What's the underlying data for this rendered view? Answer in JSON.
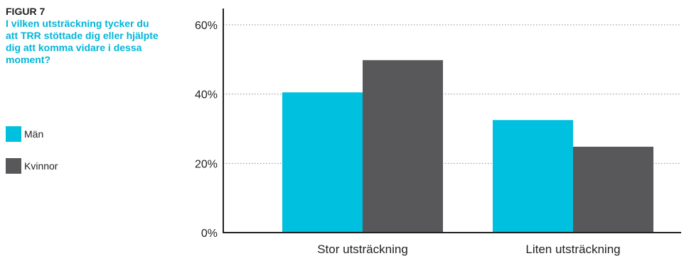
{
  "figure": {
    "label": "FIGUR 7",
    "title": "I vilken utsträckning tycker du att TRR stöttade dig eller hjälpte dig att komma vidare i dessa moment?"
  },
  "colors": {
    "man": "#00c0df",
    "kvinnor": "#58585a",
    "grid": "#8a8a8a",
    "axis": "#231f20"
  },
  "chart_data": {
    "type": "bar",
    "categories": [
      "Stor utsträckning",
      "Liten utsträckning"
    ],
    "series": [
      {
        "name": "Män",
        "values": [
          40.5,
          32.5
        ]
      },
      {
        "name": "Kvinnor",
        "values": [
          49.8,
          24.8
        ]
      }
    ],
    "ylim": [
      0,
      65
    ],
    "yticks": [
      0,
      20,
      40,
      60
    ],
    "ytick_labels": [
      "0%",
      "20%",
      "40%",
      "60%"
    ],
    "grid": true,
    "legend_position": "left"
  }
}
